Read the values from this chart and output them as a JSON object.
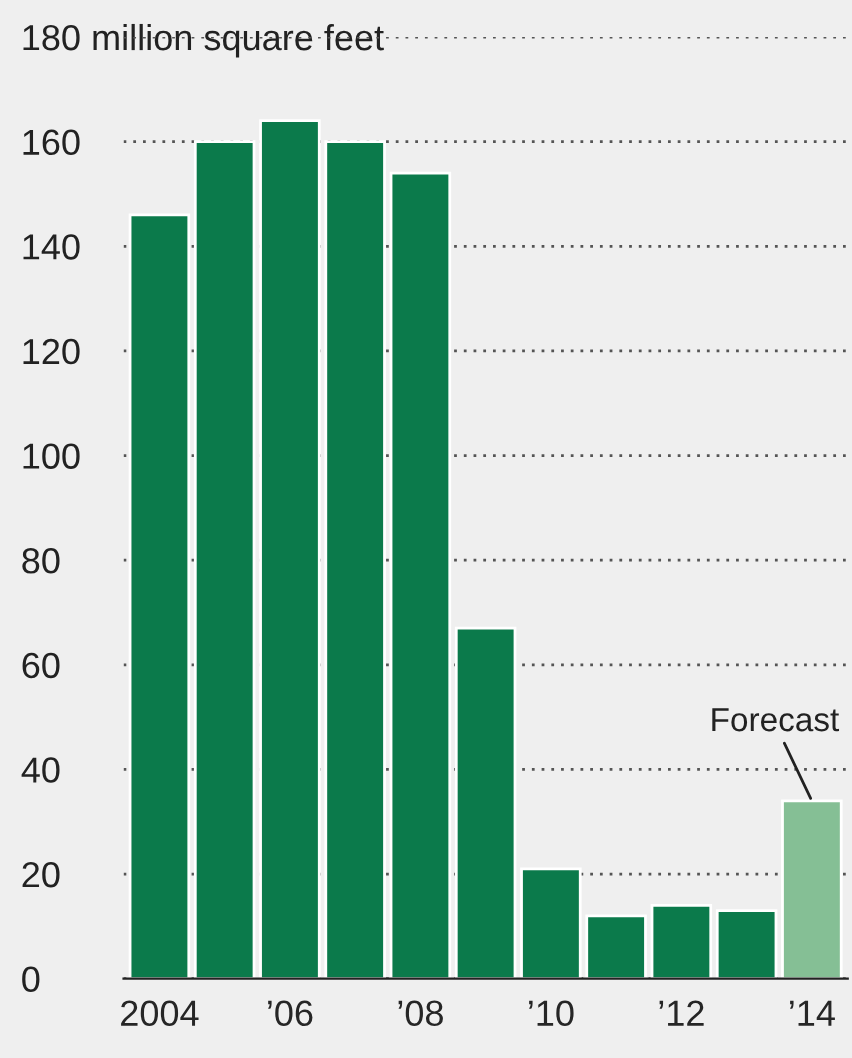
{
  "chart_data": {
    "type": "bar",
    "categories": [
      "2004",
      null,
      "’06",
      null,
      "’08",
      null,
      "’10",
      null,
      "’12",
      null,
      "’14"
    ],
    "values": [
      146,
      160,
      164,
      160,
      154,
      67,
      21,
      12,
      14,
      13,
      34
    ],
    "colors": [
      "#0b7a4b",
      "#0b7a4b",
      "#0b7a4b",
      "#0b7a4b",
      "#0b7a4b",
      "#0b7a4b",
      "#0b7a4b",
      "#0b7a4b",
      "#0b7a4b",
      "#0b7a4b",
      "#85bf95"
    ],
    "ylim": [
      0,
      180
    ],
    "yticks": [
      0,
      20,
      40,
      60,
      80,
      100,
      120,
      140,
      160,
      {
        "value": 180,
        "label": "180 million square feet"
      }
    ],
    "grid": "y",
    "annotations": [
      {
        "text": "Forecast",
        "x": "’14",
        "y": 34
      }
    ]
  }
}
